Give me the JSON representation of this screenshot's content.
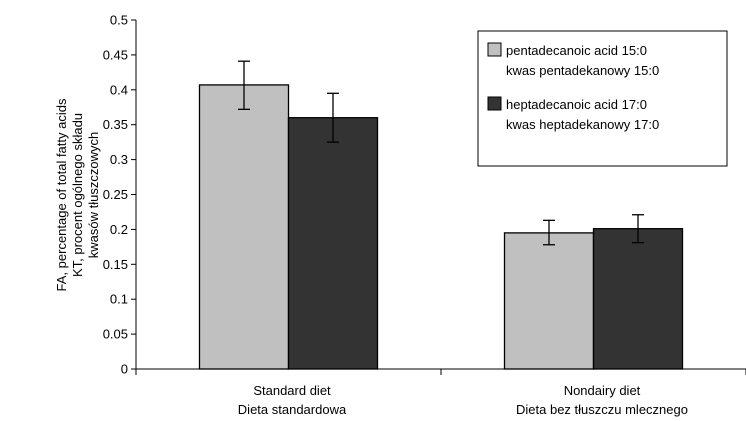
{
  "chart_data": {
    "type": "bar",
    "categories": [
      {
        "line1": "Standard diet",
        "line2": "Dieta standardowa"
      },
      {
        "line1": "Nondairy diet",
        "line2": "Dieta bez tłuszczu mlecznego"
      }
    ],
    "series": [
      {
        "name_line1": "pentadecanoic acid 15:0",
        "name_line2": "kwas pentadekanowy 15:0",
        "color": "#c0c0c0",
        "values": [
          0.407,
          0.195
        ],
        "error_low": [
          0.372,
          0.178
        ],
        "error_high": [
          0.441,
          0.213
        ]
      },
      {
        "name_line1": "heptadecanoic acid 17:0",
        "name_line2": "kwas heptadekanowy 17:0",
        "color": "#333333",
        "values": [
          0.36,
          0.201
        ],
        "error_low": [
          0.325,
          0.181
        ],
        "error_high": [
          0.395,
          0.221
        ]
      }
    ],
    "ylabel_lines": [
      "FA, percentage of total fatty acids",
      "KT, procent ogólnego składu",
      "kwasów tłuszczowych"
    ],
    "ylim": [
      0,
      0.5
    ],
    "yticks": [
      "0",
      "0.05",
      "0.1",
      "0.15",
      "0.2",
      "0.25",
      "0.3",
      "0.35",
      "0.4",
      "0.45",
      "0.5"
    ],
    "grid": false,
    "legend_position": "top-right"
  }
}
